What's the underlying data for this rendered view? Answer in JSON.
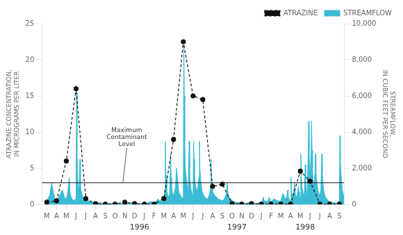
{
  "chart_data": {
    "type": "line",
    "ylabel": "ATRAZINE CONCENTRATION,\nIN MICROGRAMS PER LITER",
    "y2label": "STREAMFLOW,\nIN CUBIC FEET PER SECOND",
    "xlim": [
      -0.5,
      30.5
    ],
    "xticks": [
      {
        "value": 0,
        "label": "M"
      },
      {
        "value": 1,
        "label": "A"
      },
      {
        "value": 2,
        "label": "M"
      },
      {
        "value": 3,
        "label": "J"
      },
      {
        "value": 4,
        "label": "J"
      },
      {
        "value": 5,
        "label": "A"
      },
      {
        "value": 6,
        "label": "S"
      },
      {
        "value": 7,
        "label": "O"
      },
      {
        "value": 8,
        "label": "N"
      },
      {
        "value": 9,
        "label": "D"
      },
      {
        "value": 10,
        "label": "J"
      },
      {
        "value": 11,
        "label": "F"
      },
      {
        "value": 12,
        "label": "M"
      },
      {
        "value": 13,
        "label": "A"
      },
      {
        "value": 14,
        "label": "M"
      },
      {
        "value": 15,
        "label": "J"
      },
      {
        "value": 16,
        "label": "J"
      },
      {
        "value": 17,
        "label": "A"
      },
      {
        "value": 18,
        "label": "S"
      },
      {
        "value": 19,
        "label": "O"
      },
      {
        "value": 20,
        "label": "N"
      },
      {
        "value": 21,
        "label": "D"
      },
      {
        "value": 22,
        "label": "J"
      },
      {
        "value": 23,
        "label": "F"
      },
      {
        "value": 24,
        "label": "M"
      },
      {
        "value": 25,
        "label": "A"
      },
      {
        "value": 26,
        "label": "M"
      },
      {
        "value": 27,
        "label": "J"
      },
      {
        "value": 28,
        "label": "J"
      },
      {
        "value": 29,
        "label": "A"
      },
      {
        "value": 30,
        "label": "S"
      }
    ],
    "ylim": [
      0,
      25
    ],
    "yticks": [
      0,
      5,
      10,
      15,
      20,
      25
    ],
    "y2lim": [
      0,
      10000
    ],
    "y2ticks": [
      0,
      {
        "value": 2000,
        "label": "2,000"
      },
      {
        "value": 4000,
        "label": "4,000"
      },
      {
        "value": 6000,
        "label": "6,000"
      },
      {
        "value": 8000,
        "label": "8,000"
      },
      {
        "value": 10000,
        "label": "10,000"
      }
    ],
    "grid": false,
    "legend": "upper right",
    "series": [
      {
        "name": "STREAMFLOW",
        "type": "area",
        "color": "#3bbcd4",
        "axis": "y2",
        "x": [
          0.0,
          0.15,
          0.3,
          0.5,
          0.7,
          0.85,
          1.0,
          1.2,
          1.4,
          1.6,
          1.8,
          2.0,
          2.1,
          2.2,
          2.3,
          2.4,
          2.5,
          2.7,
          3.0,
          3.05,
          3.1,
          3.15,
          3.2,
          3.3,
          3.4,
          3.45,
          3.5,
          3.6,
          3.7,
          4.0,
          4.2,
          4.5,
          5.0,
          5.5,
          6.0,
          6.5,
          7.0,
          7.5,
          8.0,
          8.5,
          9.0,
          9.5,
          10.0,
          10.3,
          10.6,
          11.0,
          11.2,
          11.4,
          11.6,
          11.8,
          12.0,
          12.05,
          12.1,
          12.15,
          12.2,
          12.25,
          12.3,
          12.4,
          12.5,
          12.6,
          12.7,
          12.75,
          12.8,
          12.9,
          13.0,
          13.1,
          13.2,
          13.3,
          13.4,
          13.5,
          13.6,
          13.7,
          13.8,
          13.9,
          14.0,
          14.05,
          14.1,
          14.15,
          14.2,
          14.3,
          14.4,
          14.5,
          14.6,
          14.65,
          14.7,
          14.8,
          14.9,
          15.0,
          15.05,
          15.1,
          15.15,
          15.2,
          15.3,
          15.4,
          15.5,
          15.6,
          15.65,
          15.7,
          15.8,
          15.9,
          16.0,
          16.1,
          16.2,
          16.3,
          16.5,
          16.7,
          16.8,
          16.85,
          16.9,
          16.95,
          17.0,
          17.2,
          17.4,
          17.6,
          17.8,
          18.0,
          18.2,
          18.4,
          18.5,
          18.55,
          18.6,
          18.7,
          18.9,
          19.0,
          19.2,
          19.4,
          19.6,
          19.8,
          20.0,
          20.2,
          20.4,
          20.6,
          20.8,
          21.0,
          21.2,
          21.4,
          21.6,
          21.8,
          22.0,
          22.1,
          22.2,
          22.25,
          22.3,
          22.5,
          22.7,
          22.8,
          22.85,
          22.9,
          23.0,
          23.1,
          23.3,
          23.5,
          23.7,
          23.9,
          24.0,
          24.1,
          24.2,
          24.3,
          24.4,
          24.5,
          24.6,
          24.7,
          24.75,
          24.8,
          24.9,
          25.0,
          25.05,
          25.1,
          25.15,
          25.2,
          25.3,
          25.4,
          25.45,
          25.5,
          25.6,
          25.7,
          25.8,
          25.85,
          25.9,
          26.0,
          26.05,
          26.1,
          26.2,
          26.3,
          26.4,
          26.5,
          26.55,
          26.6,
          26.7,
          26.8,
          26.85,
          26.9,
          26.95,
          27.0,
          27.1,
          27.15,
          27.2,
          27.25,
          27.3,
          27.4,
          27.5,
          27.55,
          27.6,
          27.7,
          27.8,
          27.9,
          28.0,
          28.1,
          28.2,
          28.25,
          28.3,
          28.4,
          28.5,
          28.6,
          28.7,
          28.8,
          28.9,
          29.0,
          29.2,
          29.4,
          29.6,
          29.8,
          30.0,
          30.05,
          30.1,
          30.2,
          30.3,
          30.4,
          30.5
        ],
        "values": [
          200,
          350,
          500,
          1200,
          600,
          300,
          200,
          400,
          600,
          800,
          400,
          300,
          500,
          900,
          1500,
          600,
          400,
          200,
          300,
          6200,
          3000,
          1800,
          1000,
          800,
          2500,
          1500,
          800,
          600,
          400,
          300,
          200,
          150,
          100,
          80,
          60,
          50,
          50,
          60,
          80,
          100,
          60,
          50,
          60,
          80,
          150,
          100,
          150,
          300,
          200,
          150,
          200,
          400,
          800,
          3500,
          2000,
          1500,
          800,
          500,
          400,
          600,
          2800,
          1500,
          900,
          600,
          500,
          700,
          1000,
          2000,
          1500,
          800,
          600,
          500,
          400,
          350,
          400,
          9000,
          6000,
          3500,
          2000,
          1500,
          1000,
          800,
          3500,
          2000,
          1200,
          800,
          600,
          400,
          3500,
          2500,
          1800,
          1200,
          900,
          700,
          1000,
          1500,
          3500,
          2000,
          1200,
          800,
          600,
          500,
          400,
          350,
          300,
          600,
          1000,
          2500,
          1500,
          1000,
          700,
          500,
          400,
          300,
          250,
          200,
          300,
          600,
          1200,
          800,
          500,
          400,
          300,
          200,
          150,
          120,
          100,
          80,
          60,
          50,
          60,
          80,
          100,
          80,
          60,
          50,
          60,
          80,
          100,
          200,
          400,
          300,
          200,
          150,
          200,
          400,
          300,
          200,
          150,
          200,
          300,
          250,
          200,
          180,
          200,
          400,
          600,
          500,
          350,
          300,
          400,
          800,
          500,
          350,
          250,
          200,
          1500,
          800,
          500,
          400,
          600,
          1200,
          800,
          500,
          400,
          600,
          1000,
          700,
          500,
          400,
          2800,
          1500,
          800,
          600,
          500,
          2200,
          1400,
          800,
          600,
          2800,
          4600,
          3000,
          2000,
          1500,
          2800,
          4600,
          3000,
          2000,
          1400,
          1000,
          1800,
          2800,
          1800,
          1200,
          800,
          600,
          400,
          800,
          2800,
          1800,
          1200,
          800,
          500,
          400,
          300,
          250,
          200,
          150,
          120,
          100,
          80,
          60,
          200,
          3800,
          2400,
          1400,
          800,
          600,
          400
        ]
      },
      {
        "name": "ATRAZINE",
        "type": "line",
        "color": "#111111",
        "line_style": "dashed",
        "marker": "circle",
        "x": [
          0,
          1,
          2,
          3,
          4,
          5,
          6,
          7,
          8,
          9,
          10,
          11,
          12,
          13,
          14,
          15,
          16,
          17,
          18,
          19,
          20,
          21,
          22,
          23,
          24,
          25,
          26,
          27,
          28,
          29,
          30
        ],
        "values": [
          0.3,
          0.5,
          6.0,
          16.0,
          0.8,
          0.1,
          0.05,
          0.05,
          0.3,
          0.1,
          0.05,
          0.05,
          0.8,
          9.0,
          22.5,
          15.0,
          14.5,
          2.5,
          2.8,
          0.1,
          0.05,
          0.1,
          0.05,
          0.05,
          0.05,
          0.05,
          4.6,
          3.2,
          0.05,
          0.05,
          0.05
        ]
      }
    ],
    "hlines": [
      {
        "y": 3.0,
        "color": "#111111"
      }
    ],
    "annotations": [
      {
        "text": "Maximum\nContaminant\nLevel",
        "x": 8.2,
        "y": 7.8,
        "point": [
          7.8,
          3.0
        ]
      },
      {
        "text": "1996",
        "x": 9.5
      },
      {
        "text": "1997",
        "x": 19.5
      },
      {
        "text": "1998",
        "x": 26.5
      }
    ]
  }
}
